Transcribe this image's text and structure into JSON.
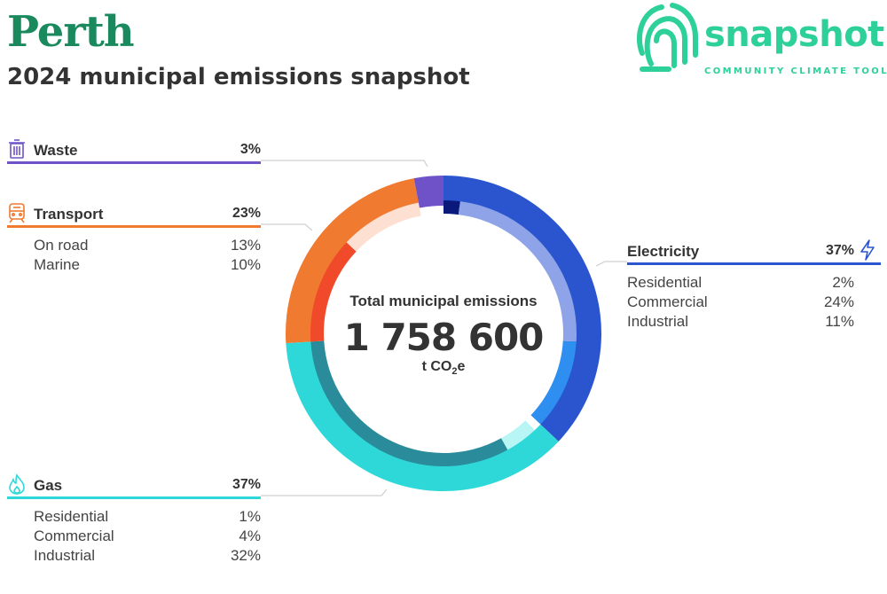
{
  "header": {
    "city": "Perth",
    "subtitle": "2024 municipal emissions snapshot"
  },
  "logo": {
    "name": "snapshot",
    "tagline": "COMMUNITY CLIMATE TOOL",
    "color": "#2ed09a"
  },
  "center": {
    "title": "Total municipal emissions",
    "value": "1 758 600",
    "unit_prefix": "t CO",
    "unit_sub": "2",
    "unit_suffix": "e"
  },
  "sectors": {
    "waste": {
      "label": "Waste",
      "pct": "3%",
      "icon": "trash-icon",
      "color": "#6f52c8"
    },
    "transport": {
      "label": "Transport",
      "pct": "23%",
      "icon": "train-icon",
      "color": "#ef7a30",
      "subs": [
        {
          "label": "On road",
          "pct": "13%"
        },
        {
          "label": "Marine",
          "pct": "10%"
        }
      ]
    },
    "electricity": {
      "label": "Electricity",
      "pct": "37%",
      "icon": "lightning-icon",
      "color": "#2a55cf",
      "subs": [
        {
          "label": "Residential",
          "pct": "2%"
        },
        {
          "label": "Commercial",
          "pct": "24%"
        },
        {
          "label": "Industrial",
          "pct": "11%"
        }
      ]
    },
    "gas": {
      "label": "Gas",
      "pct": "37%",
      "icon": "flame-icon",
      "color": "#2ed8d8",
      "subs": [
        {
          "label": "Residential",
          "pct": "1%"
        },
        {
          "label": "Commercial",
          "pct": "4%"
        },
        {
          "label": "Industrial",
          "pct": "32%"
        }
      ]
    }
  },
  "chart_data": {
    "type": "pie",
    "total": 1758600,
    "unit": "t CO2e",
    "sectors": [
      {
        "name": "Electricity",
        "value": 37,
        "color": "#2a55cf",
        "subs": [
          {
            "name": "Residential",
            "value": 2,
            "color": "#0b1a7a"
          },
          {
            "name": "Commercial",
            "value": 24,
            "color": "#8ea3e8"
          },
          {
            "name": "Industrial",
            "value": 11,
            "color": "#2f8ff0"
          }
        ]
      },
      {
        "name": "Gas",
        "value": 37,
        "color": "#2ed8d8",
        "subs": [
          {
            "name": "Residential",
            "value": 1,
            "color": "#ffffff"
          },
          {
            "name": "Commercial",
            "value": 4,
            "color": "#b8f5f5"
          },
          {
            "name": "Industrial",
            "value": 32,
            "color": "#2a8c9a"
          }
        ]
      },
      {
        "name": "Transport",
        "value": 23,
        "color": "#ef7a30",
        "subs": [
          {
            "name": "On road",
            "value": 13,
            "color": "#f04a2a"
          },
          {
            "name": "Marine",
            "value": 10,
            "color": "#fde0d2"
          }
        ]
      },
      {
        "name": "Waste",
        "value": 3,
        "color": "#6f52c8",
        "subs": []
      }
    ]
  }
}
